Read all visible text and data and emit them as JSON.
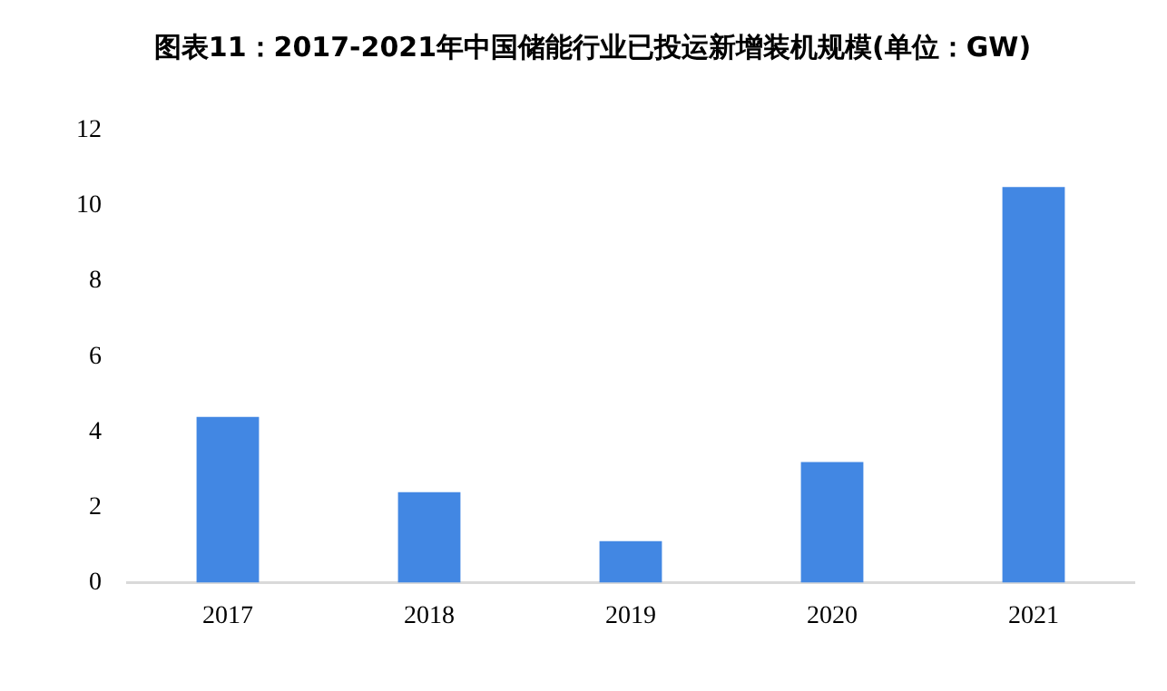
{
  "chart_data": {
    "type": "bar",
    "title": "图表11：2017-2021年中国储能行业已投运新增装机规模(单位：GW)",
    "categories": [
      "2017",
      "2018",
      "2019",
      "2020",
      "2021"
    ],
    "values": [
      4.4,
      2.4,
      1.1,
      3.2,
      10.5
    ],
    "color": "#4287e3",
    "ylim": [
      0,
      12
    ],
    "yticks": [
      0,
      2,
      4,
      6,
      8,
      10,
      12
    ],
    "grid": false,
    "legend": false
  }
}
